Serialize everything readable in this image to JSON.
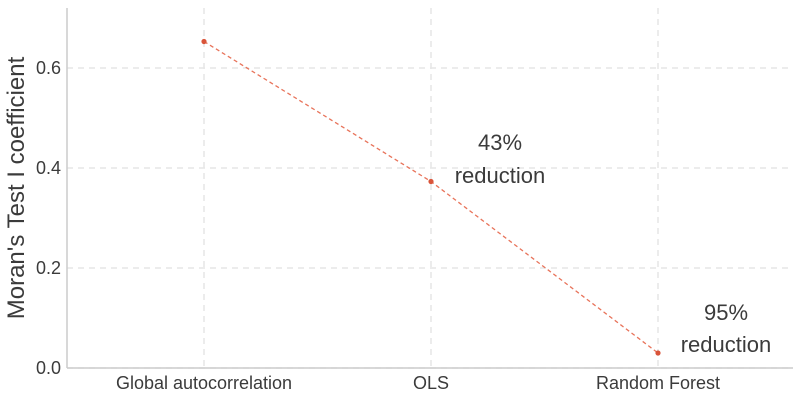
{
  "chart_data": {
    "type": "line",
    "categories": [
      "Global autocorrelation",
      "OLS",
      "Random Forest"
    ],
    "series": [
      {
        "values": [
          0.653,
          0.373,
          0.03
        ]
      }
    ],
    "xlabel": "",
    "ylabel": "Moran's Test I coefficient",
    "ylim": [
      0.0,
      0.72
    ],
    "yticks": [
      0.0,
      0.2,
      0.4,
      0.6
    ],
    "ytick_labels": [
      "0.0",
      "0.2",
      "0.4",
      "0.6"
    ],
    "grid": true,
    "line_style": "dashed",
    "marker": "circle",
    "annotations": [
      {
        "category": "OLS",
        "line1": "43%",
        "line2": "reduction"
      },
      {
        "category": "Random Forest",
        "line1": "95%",
        "line2": "reduction"
      }
    ],
    "colors": {
      "series": "#e8735a",
      "marker": "#d9543a",
      "grid": "#e6e6e6",
      "axis": "#cccccc",
      "text": "#3b3b3b"
    }
  }
}
